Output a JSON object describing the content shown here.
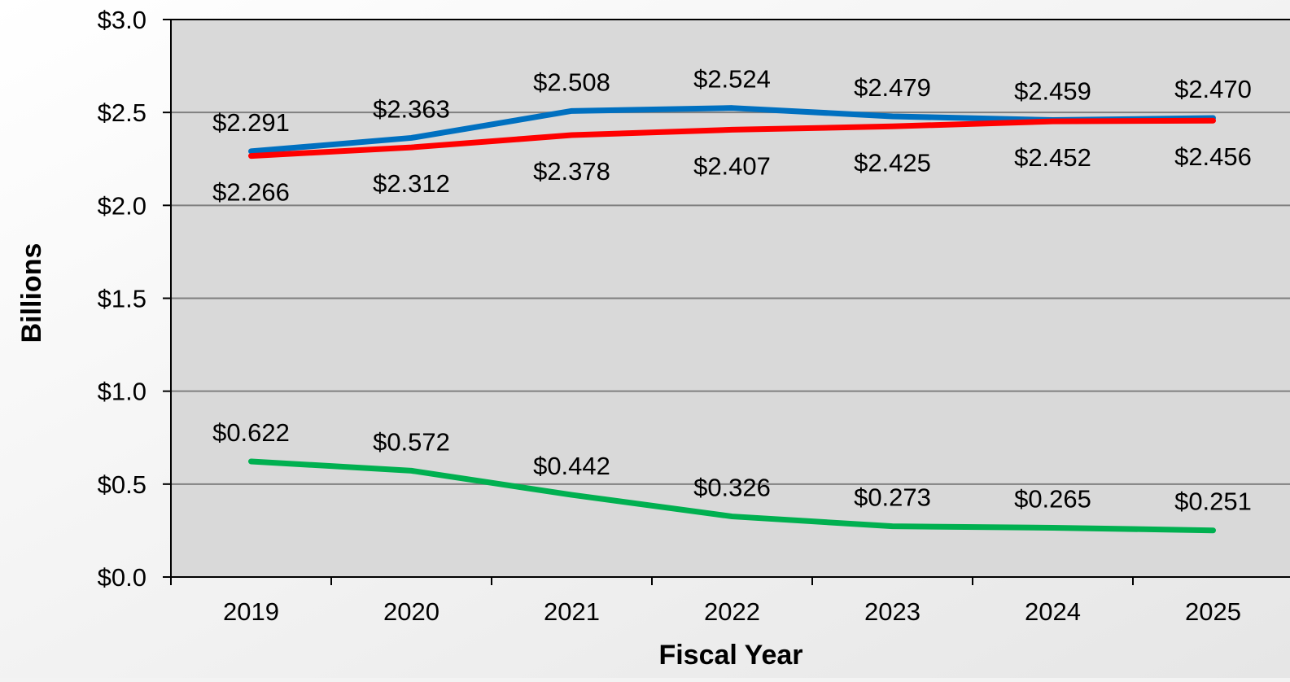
{
  "chart_data": {
    "type": "line",
    "xlabel": "Fiscal Year",
    "ylabel": "Billions",
    "categories": [
      "2019",
      "2020",
      "2021",
      "2022",
      "2023",
      "2024",
      "2025"
    ],
    "ylim": [
      0,
      3.0
    ],
    "y_ticks": [
      {
        "value": 0.0,
        "label": "$0.0"
      },
      {
        "value": 0.5,
        "label": "$0.5"
      },
      {
        "value": 1.0,
        "label": "$1.0"
      },
      {
        "value": 1.5,
        "label": "$1.5"
      },
      {
        "value": 2.0,
        "label": "$2.0"
      },
      {
        "value": 2.5,
        "label": "$2.5"
      },
      {
        "value": 3.0,
        "label": "$3.0"
      }
    ],
    "grid": true,
    "legend": "none",
    "series": [
      {
        "color": "#0070c0",
        "label_position": "above",
        "values": [
          2.291,
          2.363,
          2.508,
          2.524,
          2.479,
          2.459,
          2.47
        ],
        "labels": [
          "$2.291",
          "$2.363",
          "$2.508",
          "$2.524",
          "$2.479",
          "$2.459",
          "$2.470"
        ]
      },
      {
        "color": "#ff0000",
        "label_position": "below",
        "values": [
          2.266,
          2.312,
          2.378,
          2.407,
          2.425,
          2.452,
          2.456
        ],
        "labels": [
          "$2.266",
          "$2.312",
          "$2.378",
          "$2.407",
          "$2.425",
          "$2.452",
          "$2.456"
        ]
      },
      {
        "color": "#00b050",
        "label_position": "above",
        "values": [
          0.622,
          0.572,
          0.442,
          0.326,
          0.273,
          0.265,
          0.251
        ],
        "labels": [
          "$0.622",
          "$0.572",
          "$0.442",
          "$0.326",
          "$0.273",
          "$0.265",
          "$0.251"
        ]
      }
    ]
  }
}
